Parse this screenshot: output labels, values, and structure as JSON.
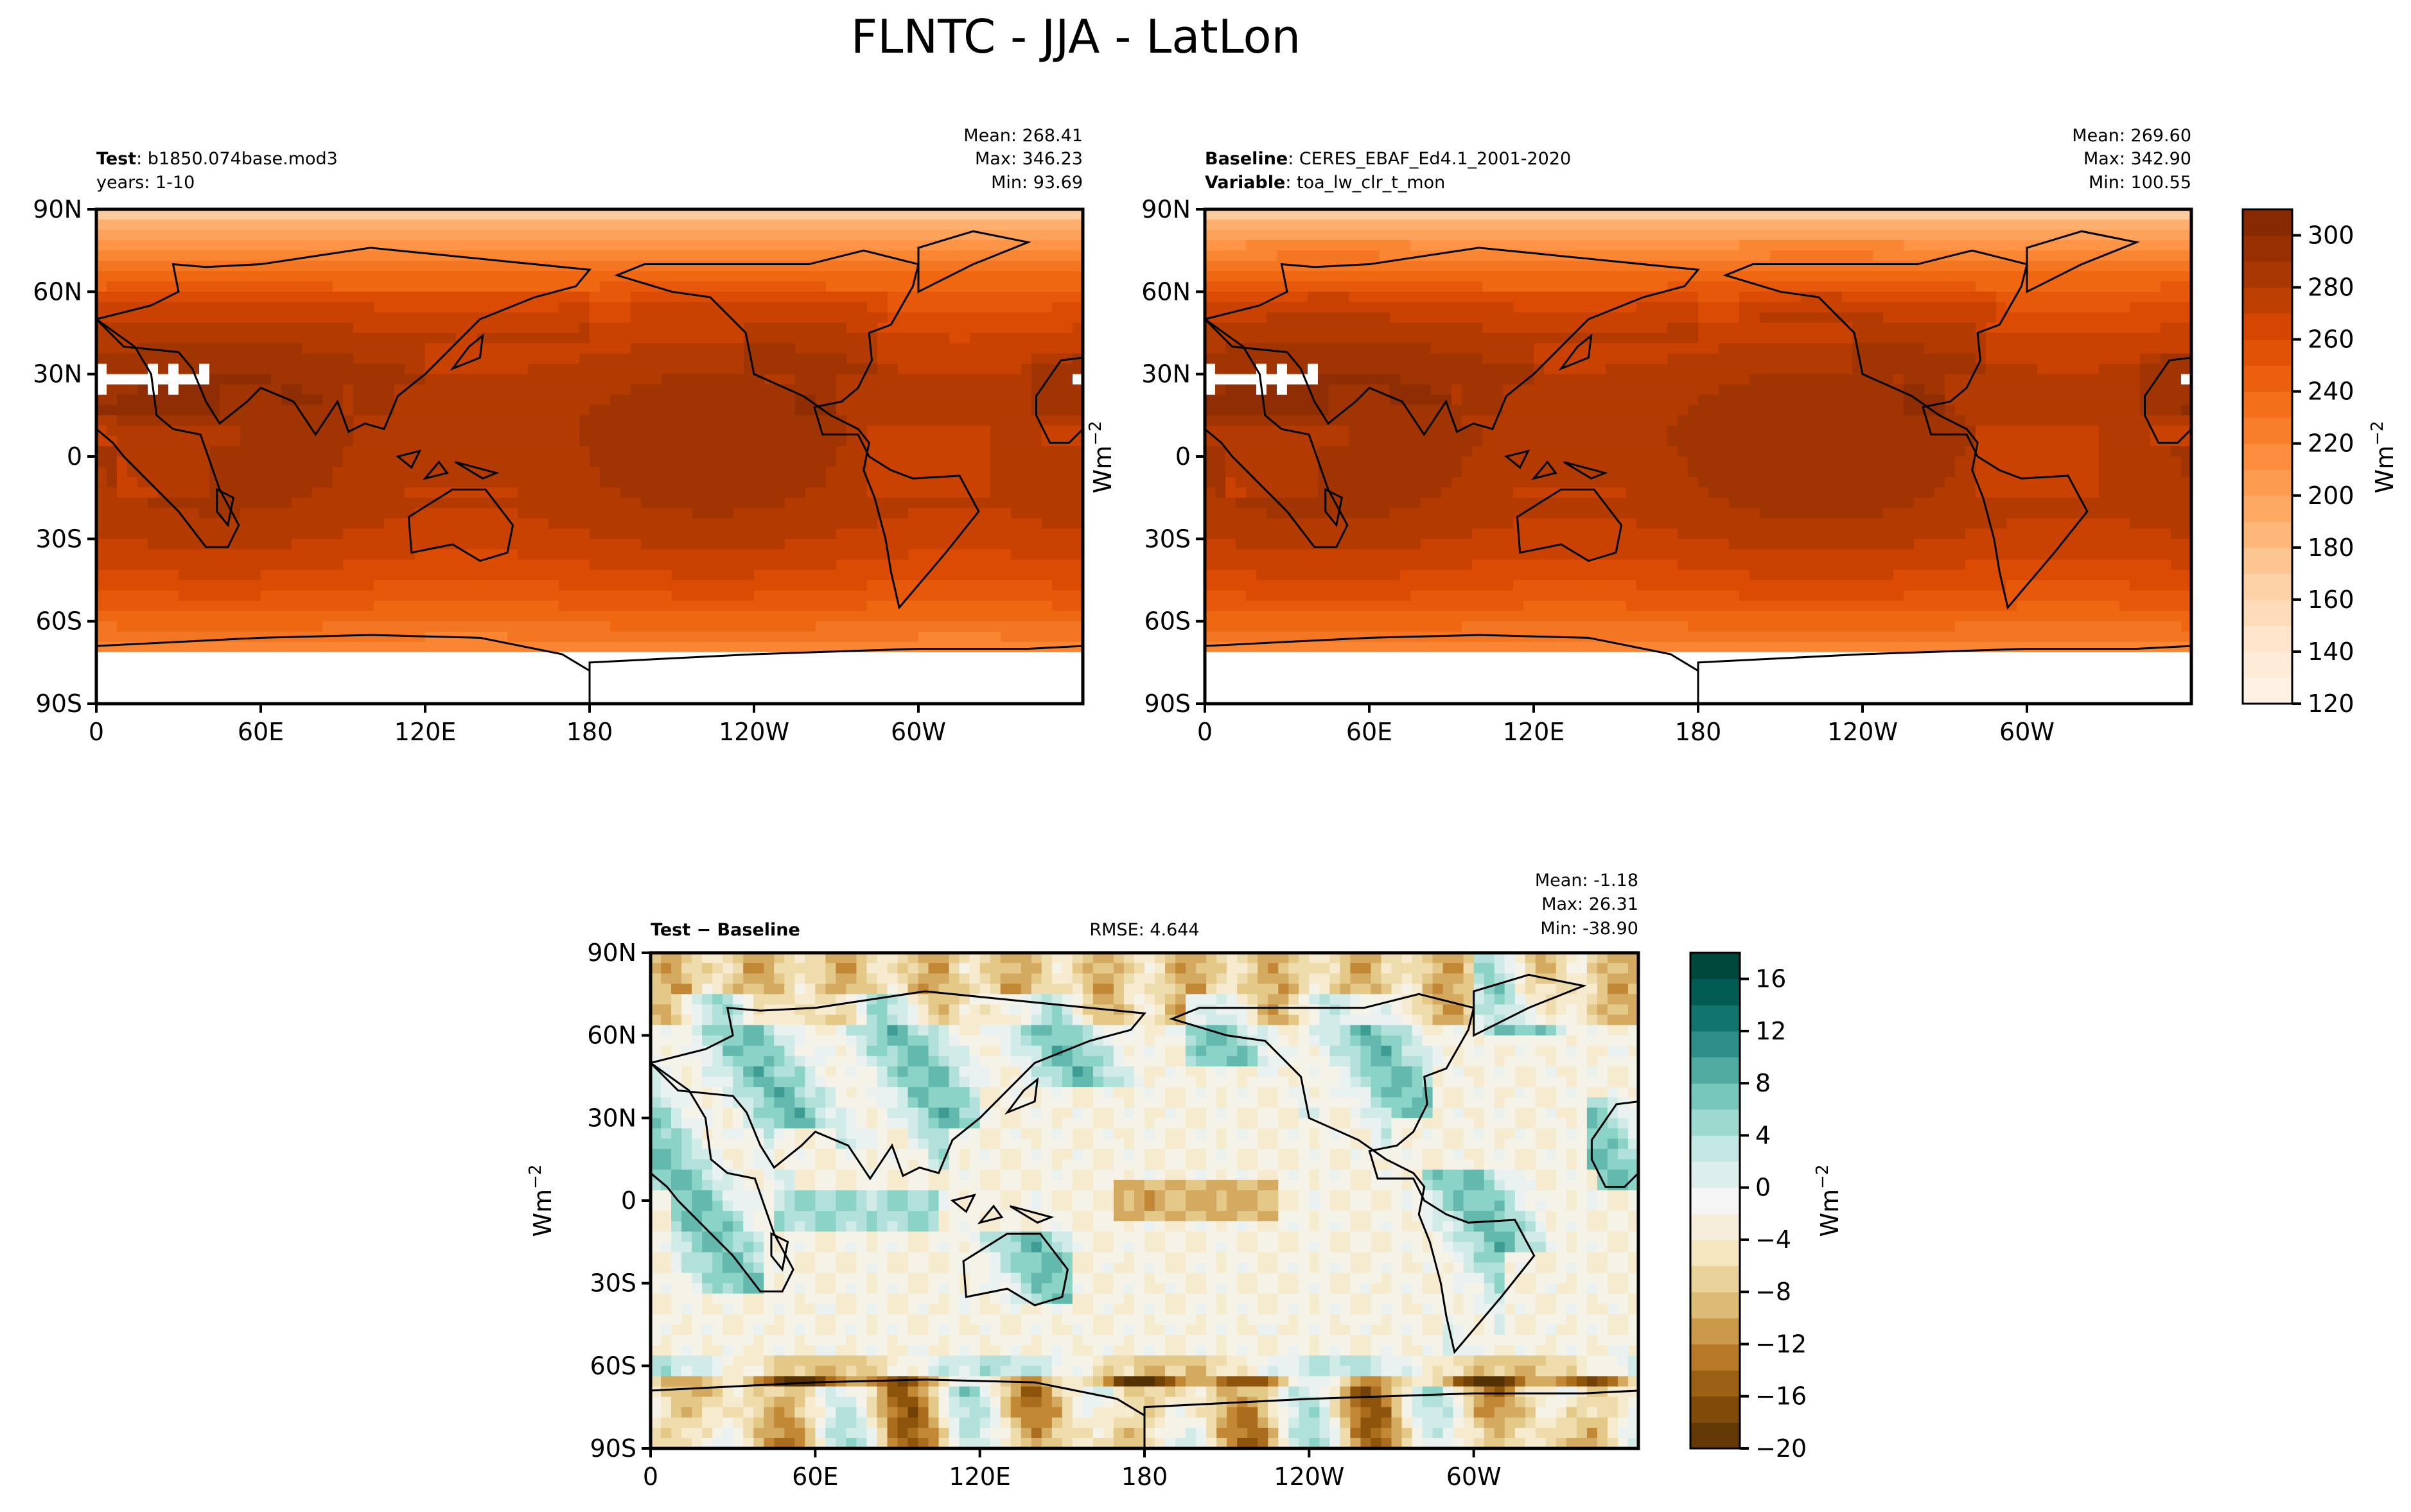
{
  "figure": {
    "title": "FLNTC - JJA - LatLon"
  },
  "colors": {
    "test_base_ramp": [
      "#fff5eb",
      "#fee6ce",
      "#fdd0a2",
      "#fdae6b",
      "#fd8d3c",
      "#f16913",
      "#d94801",
      "#a63603",
      "#7f2704"
    ],
    "diff_ramp": [
      "#543005",
      "#8c510a",
      "#bf812d",
      "#dfc27d",
      "#f6e8c3",
      "#f5f5f5",
      "#c7eae5",
      "#80cdc1",
      "#35978f",
      "#01665e",
      "#003c30"
    ],
    "land_outline": "#000000",
    "missing_data": "#ffffff"
  },
  "panels": {
    "test": {
      "label_bold": "Test",
      "label_text": ": b1850.074base.mod3",
      "line2": "years: 1-10",
      "mean": "Mean: 268.41",
      "max": "Max: 346.23",
      "min": "Min: 93.69"
    },
    "baseline": {
      "label_bold": "Baseline",
      "label_text": ": CERES_EBAF_Ed4.1_2001-2020",
      "line2_bold": "Variable",
      "line2_text": ": toa_lw_clr_t_mon",
      "mean": "Mean: 269.60",
      "max": "Max: 342.90",
      "min": "Min: 100.55"
    },
    "diff": {
      "label_bold": "Test − Baseline",
      "rmse": "RMSE: 4.644",
      "mean": "Mean: -1.18",
      "max": "Max: 26.31",
      "min": "Min: -38.90"
    }
  },
  "axes": {
    "lat_ticks": [
      "90N",
      "60N",
      "30N",
      "0",
      "30S",
      "60S",
      "90S"
    ],
    "lon_ticks": [
      "0",
      "60E",
      "120E",
      "180",
      "120W",
      "60W"
    ]
  },
  "colorbars": {
    "abs": {
      "ticks": [
        "300",
        "280",
        "260",
        "240",
        "220",
        "200",
        "180",
        "160",
        "140",
        "120"
      ],
      "label": "Wm",
      "label_sup": "−2",
      "range": [
        120,
        310
      ]
    },
    "diff": {
      "ticks": [
        "16",
        "12",
        "8",
        "4",
        "0",
        "−4",
        "−8",
        "−12",
        "−16",
        "−20"
      ],
      "label": "Wm",
      "label_sup": "−2",
      "range": [
        -20,
        18
      ]
    },
    "mid_ylabel": "Wm",
    "mid_ylabel_sup": "−2",
    "diff_left_ylabel": "Wm",
    "diff_left_ylabel_sup": "−2"
  },
  "chart_data": [
    {
      "type": "heatmap",
      "title": "Test: b1850.074base.mod3",
      "subtitle": "years: 1-10",
      "x_ticks": [
        "0",
        "60E",
        "120E",
        "180",
        "120W",
        "60W"
      ],
      "y_ticks": [
        "90N",
        "60N",
        "30N",
        "0",
        "30S",
        "60S",
        "90S"
      ],
      "stats": {
        "mean": 268.41,
        "max": 346.23,
        "min": 93.69
      },
      "color_range": [
        120,
        310
      ],
      "colormap": "Oranges",
      "units": "Wm-2"
    },
    {
      "type": "heatmap",
      "title": "Baseline: CERES_EBAF_Ed4.1_2001-2020",
      "subtitle": "Variable: toa_lw_clr_t_mon",
      "x_ticks": [
        "0",
        "60E",
        "120E",
        "180",
        "120W",
        "60W"
      ],
      "y_ticks": [
        "90N",
        "60N",
        "30N",
        "0",
        "30S",
        "60S",
        "90S"
      ],
      "stats": {
        "mean": 269.6,
        "max": 342.9,
        "min": 100.55
      },
      "color_range": [
        120,
        310
      ],
      "colormap": "Oranges",
      "units": "Wm-2"
    },
    {
      "type": "heatmap",
      "title": "Test − Baseline",
      "x_ticks": [
        "0",
        "60E",
        "120E",
        "180",
        "120W",
        "60W"
      ],
      "y_ticks": [
        "90N",
        "60N",
        "30N",
        "0",
        "30S",
        "60S",
        "90S"
      ],
      "stats": {
        "mean": -1.18,
        "max": 26.31,
        "min": -38.9,
        "rmse": 4.644
      },
      "color_range": [
        -20,
        18
      ],
      "colormap": "BrBG",
      "units": "Wm-2"
    }
  ]
}
